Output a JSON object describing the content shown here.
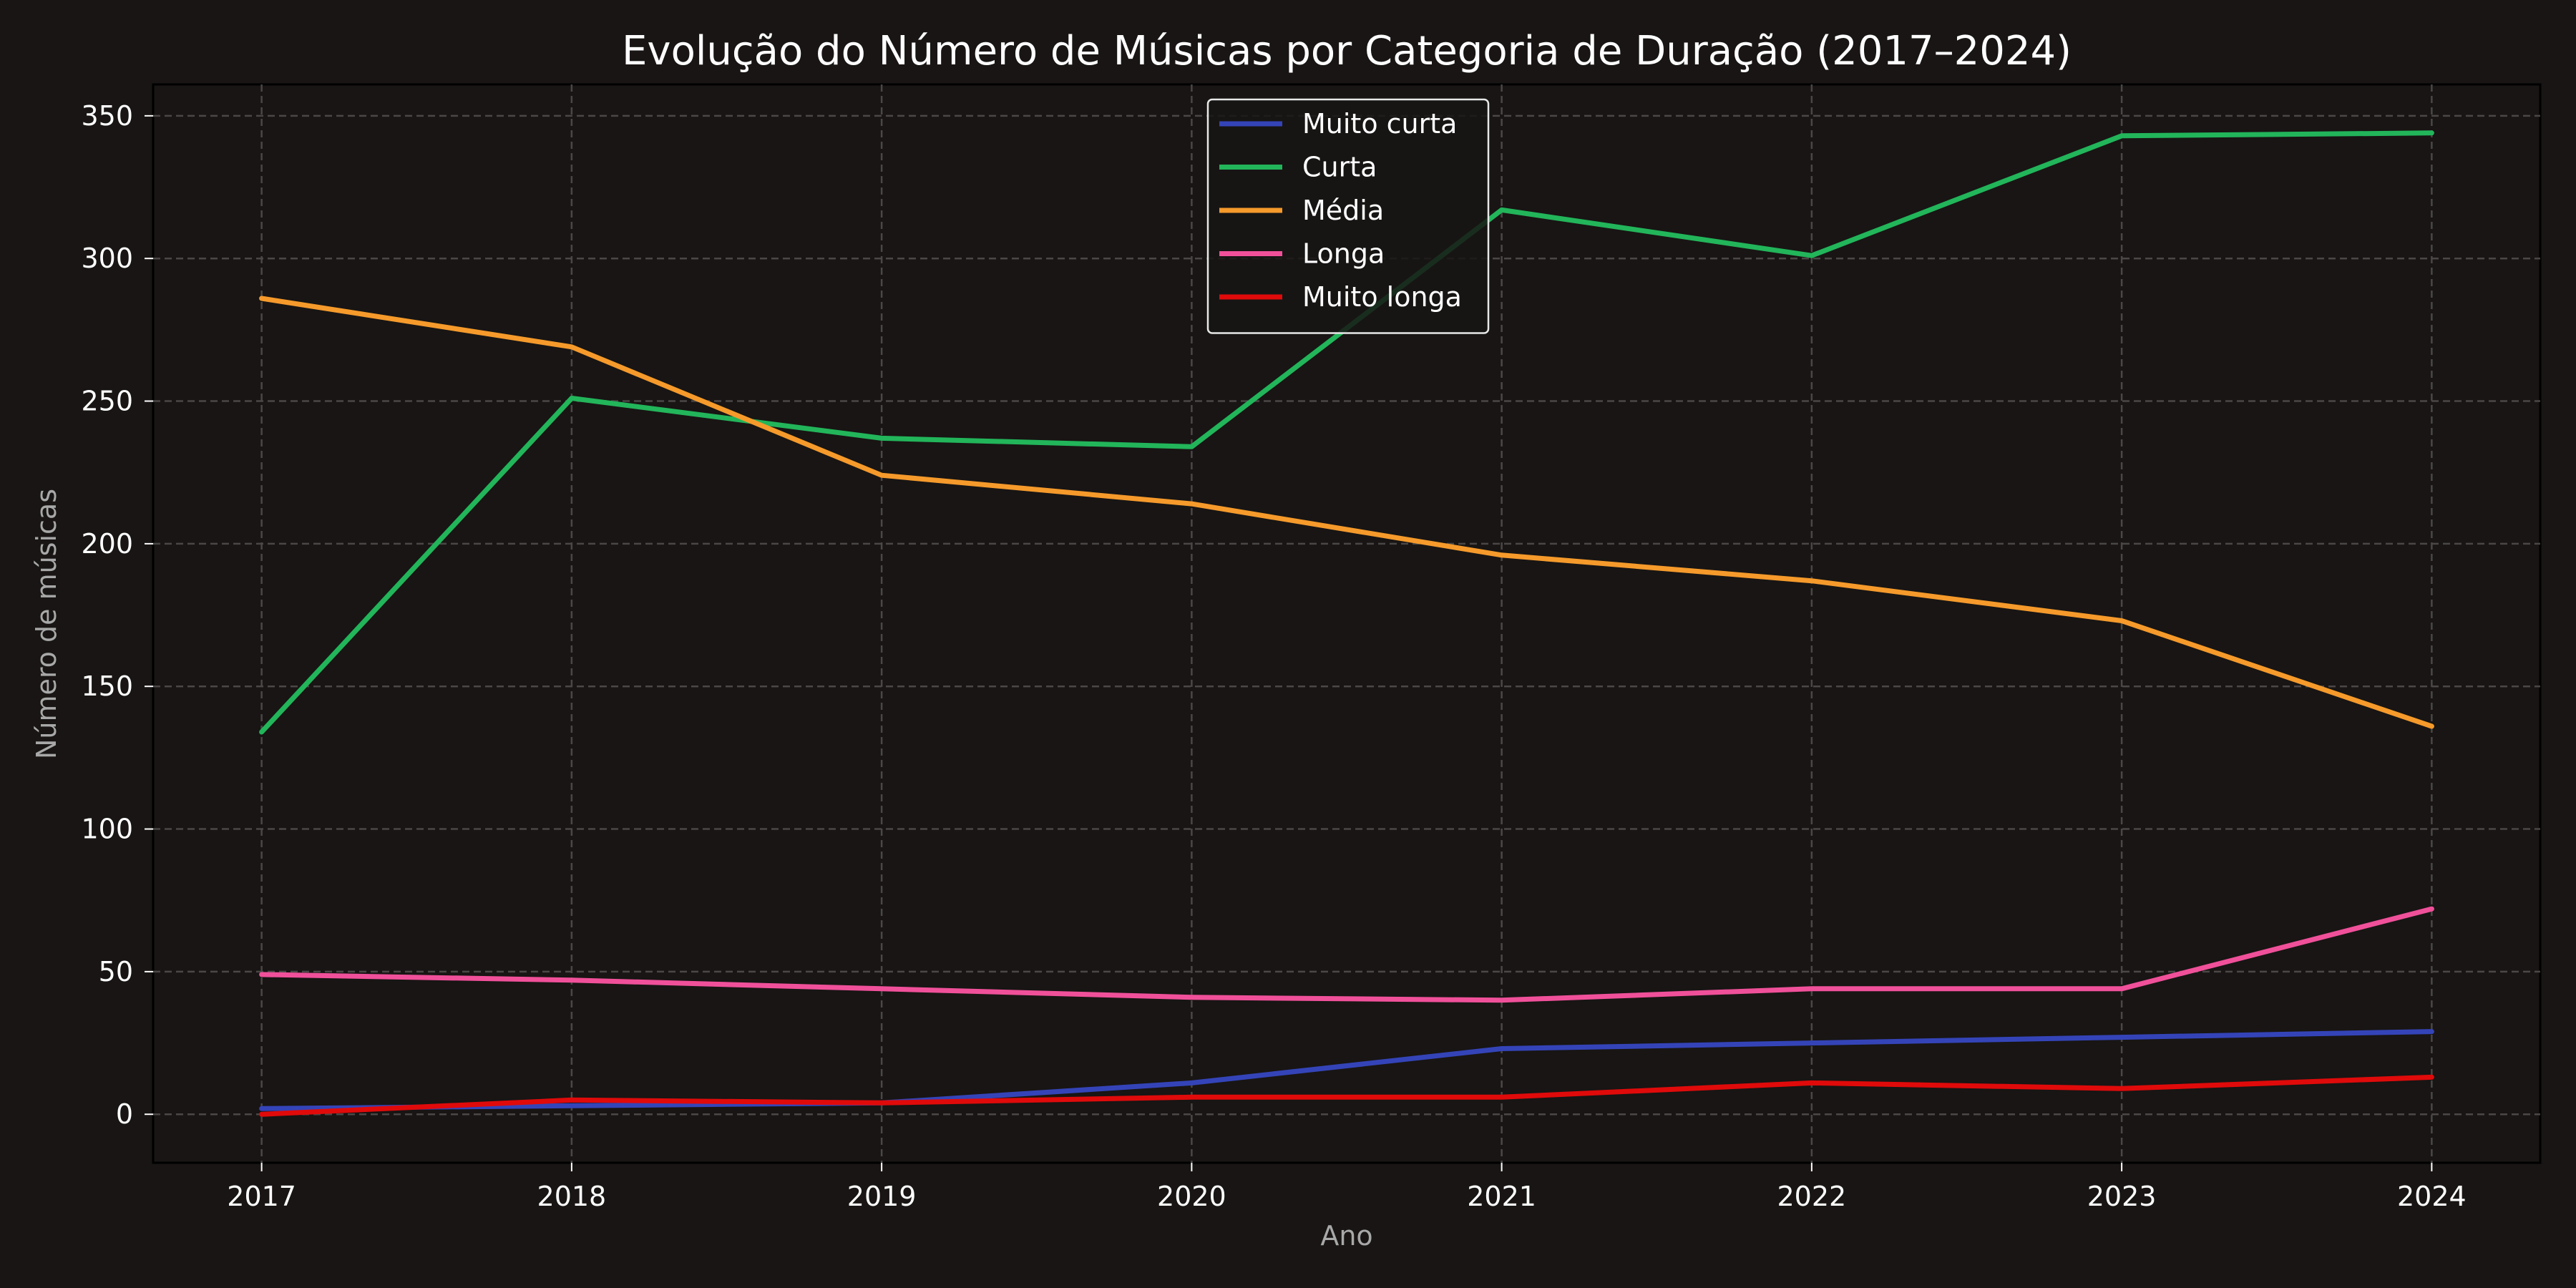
{
  "chart_data": {
    "type": "line",
    "title": "Evolução do Número de Músicas por Categoria de Duração (2017–2024)",
    "xlabel": "Ano",
    "ylabel": "Número de músicas",
    "x": [
      2017,
      2018,
      2019,
      2020,
      2021,
      2022,
      2023,
      2024
    ],
    "xlim": [
      2016.65,
      2024.35
    ],
    "ylim": [
      -17,
      361
    ],
    "yticks": [
      0,
      50,
      100,
      150,
      200,
      250,
      300,
      350
    ],
    "grid": true,
    "legend_position": "upper center",
    "series": [
      {
        "name": "Muito curta",
        "color": "#3444b8",
        "values": [
          2,
          3,
          4,
          11,
          23,
          25,
          27,
          29
        ]
      },
      {
        "name": "Curta",
        "color": "#22b55a",
        "values": [
          134,
          251,
          237,
          234,
          317,
          301,
          343,
          344
        ]
      },
      {
        "name": "Média",
        "color": "#f59a2b",
        "values": [
          286,
          269,
          224,
          214,
          196,
          187,
          173,
          136
        ]
      },
      {
        "name": "Longa",
        "color": "#f0509a",
        "values": [
          49,
          47,
          44,
          41,
          40,
          44,
          44,
          72
        ]
      },
      {
        "name": "Muito longa",
        "color": "#e00a0a",
        "values": [
          0,
          5,
          4,
          6,
          6,
          11,
          9,
          13
        ]
      }
    ]
  }
}
